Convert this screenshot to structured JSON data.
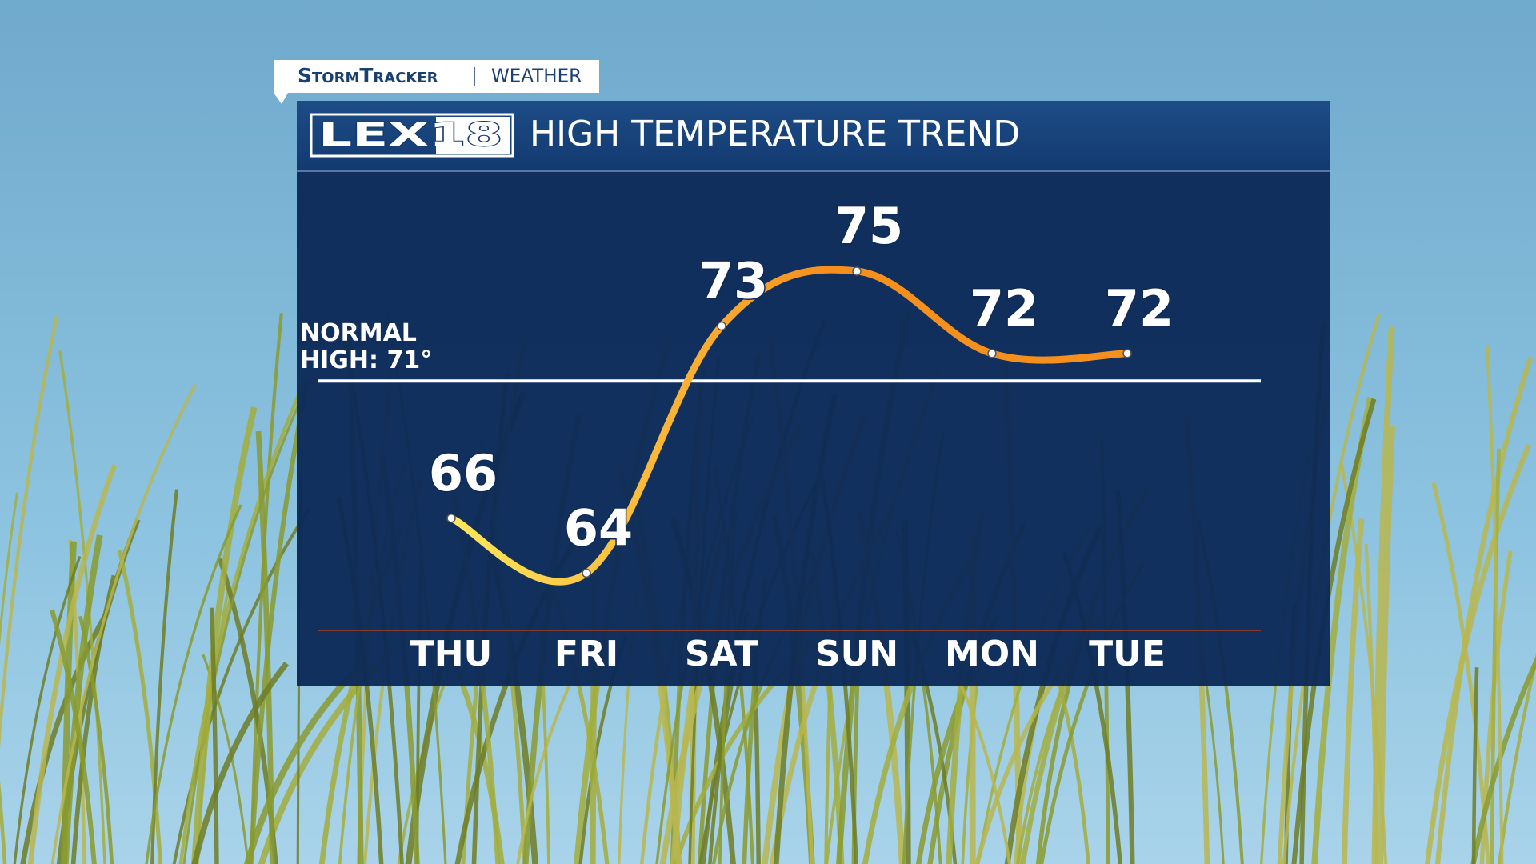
{
  "header": {
    "brand": "StormTracker",
    "section": "WEATHER",
    "logo": "LEX18"
  },
  "chart_data": {
    "type": "line",
    "title": "HIGH TEMPERATURE TREND",
    "categories": [
      "THU",
      "FRI",
      "SAT",
      "SUN",
      "MON",
      "TUE"
    ],
    "values": [
      66,
      64,
      73,
      75,
      72,
      72
    ],
    "colors": [
      "#ffe75c",
      "#f5901e"
    ],
    "ylim": [
      62,
      78
    ],
    "reference_line": {
      "value": 71,
      "label": "NORMAL HIGH: 71°",
      "color": "#ffffff"
    }
  }
}
